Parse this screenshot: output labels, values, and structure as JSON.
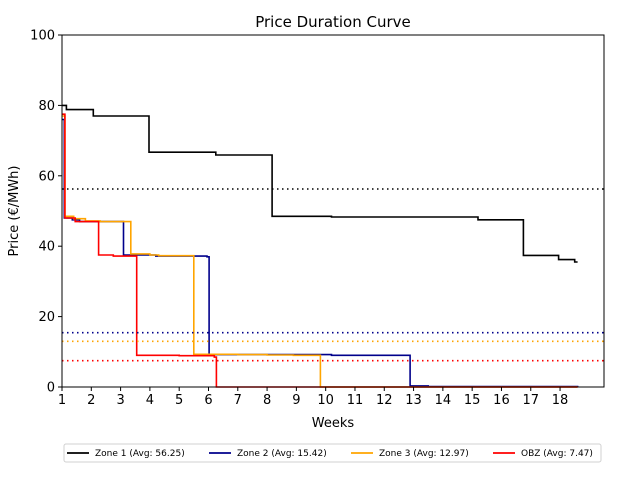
{
  "chart_data": {
    "type": "line",
    "title": "Price Duration Curve",
    "xlabel": "Weeks",
    "ylabel": "Price (€/MWh)",
    "xlim": [
      1,
      19.5
    ],
    "ylim": [
      0,
      100
    ],
    "xticks": [
      1,
      2,
      3,
      4,
      5,
      6,
      7,
      8,
      9,
      10,
      11,
      12,
      13,
      14,
      15,
      16,
      17,
      18
    ],
    "yticks": [
      0,
      20,
      40,
      60,
      80,
      100
    ],
    "grid": false,
    "legend_position": "bottom",
    "series": [
      {
        "name": "Zone 1 (Avg: 56.25)",
        "color": "#000000",
        "average": 56.25,
        "steps": [
          [
            1.0,
            80.0
          ],
          [
            1.15,
            78.8
          ],
          [
            2.07,
            77.0
          ],
          [
            3.97,
            66.7
          ],
          [
            6.25,
            65.9
          ],
          [
            8.17,
            48.5
          ],
          [
            10.2,
            48.3
          ],
          [
            15.2,
            47.5
          ],
          [
            16.75,
            37.4
          ],
          [
            17.95,
            36.2
          ],
          [
            18.5,
            35.5
          ],
          [
            18.6,
            35.5
          ]
        ]
      },
      {
        "name": "Zone 2 (Avg: 15.42)",
        "color": "#00008b",
        "average": 15.42,
        "steps": [
          [
            1.0,
            76.0
          ],
          [
            1.08,
            48.0
          ],
          [
            1.35,
            47.5
          ],
          [
            1.6,
            47.0
          ],
          [
            3.1,
            37.5
          ],
          [
            4.2,
            37.2
          ],
          [
            5.95,
            37.0
          ],
          [
            6.02,
            9.2
          ],
          [
            10.2,
            9.0
          ],
          [
            12.88,
            0.3
          ],
          [
            13.5,
            0.1
          ],
          [
            18.6,
            0.0
          ]
        ]
      },
      {
        "name": "Zone 3 (Avg: 12.97)",
        "color": "#ffa500",
        "average": 12.97,
        "steps": [
          [
            1.0,
            77.0
          ],
          [
            1.1,
            48.5
          ],
          [
            1.4,
            47.8
          ],
          [
            1.8,
            47.2
          ],
          [
            2.3,
            47.0
          ],
          [
            3.35,
            37.8
          ],
          [
            4.0,
            37.5
          ],
          [
            4.3,
            37.3
          ],
          [
            5.5,
            9.3
          ],
          [
            7.0,
            9.2
          ],
          [
            8.0,
            9.1
          ],
          [
            8.9,
            9.0
          ],
          [
            9.82,
            0.0
          ],
          [
            18.6,
            0.0
          ]
        ]
      },
      {
        "name": "OBZ (Avg: 7.47)",
        "color": "#ff0000",
        "average": 7.47,
        "steps": [
          [
            1.0,
            77.5
          ],
          [
            1.1,
            48.0
          ],
          [
            1.45,
            47.0
          ],
          [
            2.25,
            37.5
          ],
          [
            2.75,
            37.2
          ],
          [
            3.55,
            9.0
          ],
          [
            5.0,
            8.9
          ],
          [
            6.2,
            8.5
          ],
          [
            6.27,
            0.0
          ],
          [
            18.6,
            0.0
          ]
        ]
      }
    ]
  }
}
